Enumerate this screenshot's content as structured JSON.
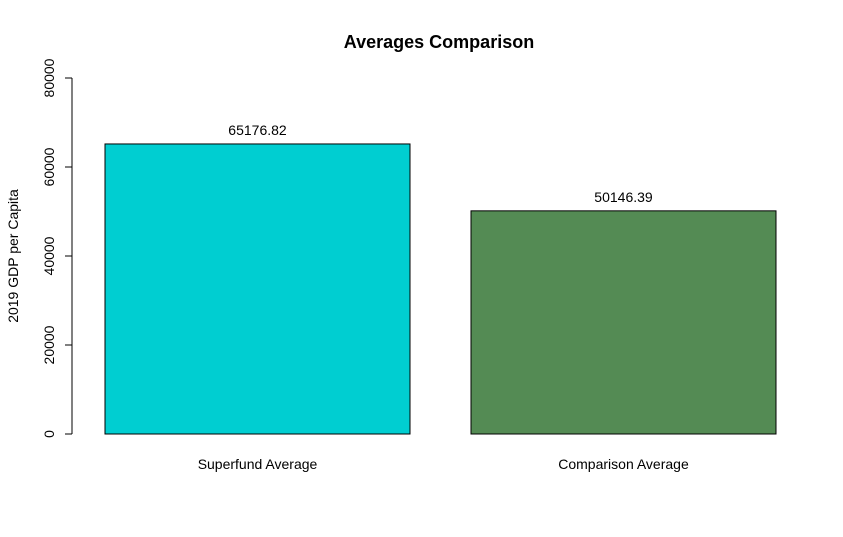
{
  "chart_data": {
    "type": "bar",
    "title": "Averages Comparison",
    "xlabel": "",
    "ylabel": "2019 GDP per Capita",
    "categories": [
      "Superfund Average",
      "Comparison Average"
    ],
    "values": [
      65176.82,
      50146.39
    ],
    "data_labels": [
      "65176.82",
      "50146.39"
    ],
    "bar_colors": [
      "#00CED1",
      "#548B54"
    ],
    "ylim": [
      0,
      80000
    ],
    "yticks": [
      0,
      20000,
      40000,
      60000,
      80000
    ],
    "ytick_labels": [
      "0",
      "20000",
      "40000",
      "60000",
      "80000"
    ],
    "grid": false,
    "legend": "none"
  }
}
